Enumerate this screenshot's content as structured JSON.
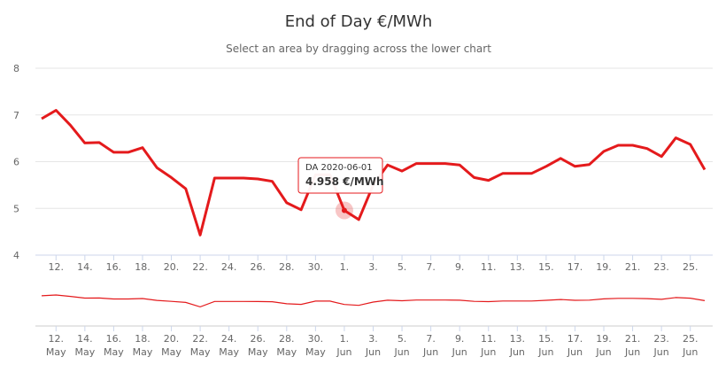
{
  "chart": {
    "title": "End of Day €/MWh",
    "subtitle": "Select an area by dragging across the lower chart",
    "tooltip": {
      "date": "DA 2020-06-01",
      "value": "4.958 €/MWh"
    },
    "colors": {
      "line": "#e41a1c",
      "grid": "#e6e6e6",
      "axis": "#ccd6eb",
      "tooltip_border": "#e41a1c"
    }
  },
  "chart_data": {
    "type": "line",
    "title": "End of Day €/MWh",
    "ylim": [
      4,
      8
    ],
    "yticks": [
      4,
      5,
      6,
      7,
      8
    ],
    "x_range": [
      "2020-05-11",
      "2020-06-26"
    ],
    "x_tick_labels": [
      [
        "12.",
        "May"
      ],
      [
        "14.",
        "May"
      ],
      [
        "16.",
        "May"
      ],
      [
        "18.",
        "May"
      ],
      [
        "20.",
        "May"
      ],
      [
        "22.",
        "May"
      ],
      [
        "24.",
        "May"
      ],
      [
        "26.",
        "May"
      ],
      [
        "28.",
        "May"
      ],
      [
        "30.",
        "May"
      ],
      [
        "1.",
        "Jun"
      ],
      [
        "3.",
        "Jun"
      ],
      [
        "5.",
        "Jun"
      ],
      [
        "7.",
        "Jun"
      ],
      [
        "9.",
        "Jun"
      ],
      [
        "11.",
        "Jun"
      ],
      [
        "13.",
        "Jun"
      ],
      [
        "15.",
        "Jun"
      ],
      [
        "17.",
        "Jun"
      ],
      [
        "19.",
        "Jun"
      ],
      [
        "21.",
        "Jun"
      ],
      [
        "23.",
        "Jun"
      ],
      [
        "25.",
        "Jun"
      ]
    ],
    "series": [
      {
        "x": [
          "2020-05-11",
          "2020-05-12",
          "2020-05-13",
          "2020-05-14",
          "2020-05-15",
          "2020-05-16",
          "2020-05-17",
          "2020-05-18",
          "2020-05-19",
          "2020-05-20",
          "2020-05-21",
          "2020-05-22",
          "2020-05-23",
          "2020-05-24",
          "2020-05-25",
          "2020-05-26",
          "2020-05-27",
          "2020-05-28",
          "2020-05-29",
          "2020-05-30",
          "2020-05-31",
          "2020-06-01",
          "2020-06-02",
          "2020-06-03",
          "2020-06-04",
          "2020-06-05",
          "2020-06-06",
          "2020-06-07",
          "2020-06-08",
          "2020-06-09",
          "2020-06-10",
          "2020-06-11",
          "2020-06-12",
          "2020-06-13",
          "2020-06-14",
          "2020-06-15",
          "2020-06-16",
          "2020-06-17",
          "2020-06-18",
          "2020-06-19",
          "2020-06-20",
          "2020-06-21",
          "2020-06-22",
          "2020-06-23",
          "2020-06-24",
          "2020-06-25",
          "2020-06-26"
        ],
        "values": [
          6.92,
          7.1,
          6.78,
          6.4,
          6.41,
          6.2,
          6.2,
          6.3,
          5.87,
          5.66,
          5.42,
          4.43,
          5.65,
          5.65,
          5.65,
          5.63,
          5.58,
          5.12,
          4.97,
          5.72,
          5.72,
          4.958,
          4.76,
          5.5,
          5.93,
          5.8,
          5.96,
          5.96,
          5.96,
          5.93,
          5.66,
          5.6,
          5.75,
          5.75,
          5.75,
          5.9,
          6.07,
          5.9,
          5.94,
          6.22,
          6.35,
          6.35,
          6.28,
          6.11,
          6.51,
          6.37,
          5.83
        ]
      }
    ]
  }
}
